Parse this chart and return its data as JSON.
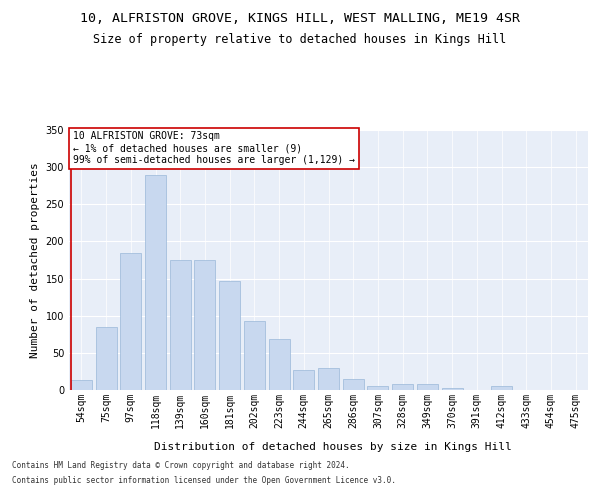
{
  "title1": "10, ALFRISTON GROVE, KINGS HILL, WEST MALLING, ME19 4SR",
  "title2": "Size of property relative to detached houses in Kings Hill",
  "xlabel": "Distribution of detached houses by size in Kings Hill",
  "ylabel": "Number of detached properties",
  "categories": [
    "54sqm",
    "75sqm",
    "97sqm",
    "118sqm",
    "139sqm",
    "160sqm",
    "181sqm",
    "202sqm",
    "223sqm",
    "244sqm",
    "265sqm",
    "286sqm",
    "307sqm",
    "328sqm",
    "349sqm",
    "370sqm",
    "391sqm",
    "412sqm",
    "433sqm",
    "454sqm",
    "475sqm"
  ],
  "bar_heights": [
    14,
    85,
    185,
    290,
    175,
    175,
    147,
    93,
    68,
    27,
    30,
    15,
    6,
    8,
    8,
    3,
    0,
    6,
    0,
    0,
    0
  ],
  "bar_color": "#c8d8ef",
  "bar_edge_color": "#9ab8d8",
  "highlight_color": "#cc0000",
  "annotation_text": "10 ALFRISTON GROVE: 73sqm\n← 1% of detached houses are smaller (9)\n99% of semi-detached houses are larger (1,129) →",
  "annotation_box_color": "#ffffff",
  "annotation_box_edge": "#cc0000",
  "ylim": [
    0,
    350
  ],
  "yticks": [
    0,
    50,
    100,
    150,
    200,
    250,
    300,
    350
  ],
  "footer1": "Contains HM Land Registry data © Crown copyright and database right 2024.",
  "footer2": "Contains public sector information licensed under the Open Government Licence v3.0.",
  "plot_bg_color": "#e8eef8",
  "grid_color": "#ffffff",
  "title_fontsize": 9.5,
  "subtitle_fontsize": 8.5,
  "tick_fontsize": 7,
  "label_fontsize": 8,
  "annotation_fontsize": 7,
  "footer_fontsize": 5.5
}
